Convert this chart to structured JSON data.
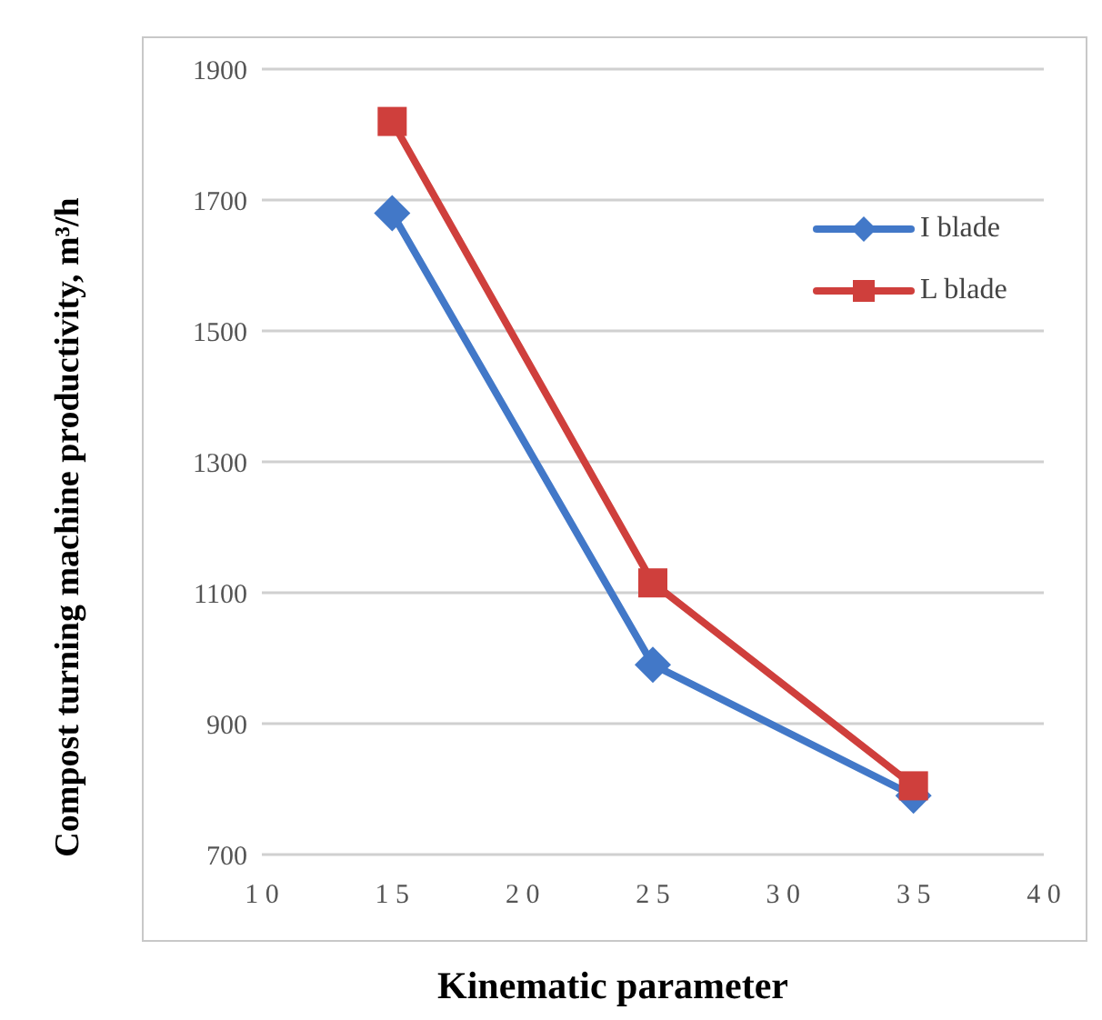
{
  "chart_data": {
    "type": "line",
    "xlabel": "Kinematic parameter",
    "ylabel": "Compost turning machine productivity, m³/h",
    "x": [
      15,
      25,
      35
    ],
    "series": [
      {
        "name": "I blade",
        "color": "#4278c8",
        "values": [
          1680,
          990,
          790
        ],
        "marker": "diamond"
      },
      {
        "name": "L blade",
        "color": "#cf3f3c",
        "values": [
          1820,
          1115,
          805
        ],
        "marker": "square"
      }
    ],
    "xlim": [
      10,
      40
    ],
    "xticks": [
      10,
      15,
      20,
      25,
      30,
      35,
      40
    ],
    "ylim": [
      700,
      1900
    ],
    "yticks": [
      700,
      900,
      1100,
      1300,
      1500,
      1700,
      1900
    ],
    "grid": "y",
    "legend": "top right",
    "line_style": "solid"
  }
}
